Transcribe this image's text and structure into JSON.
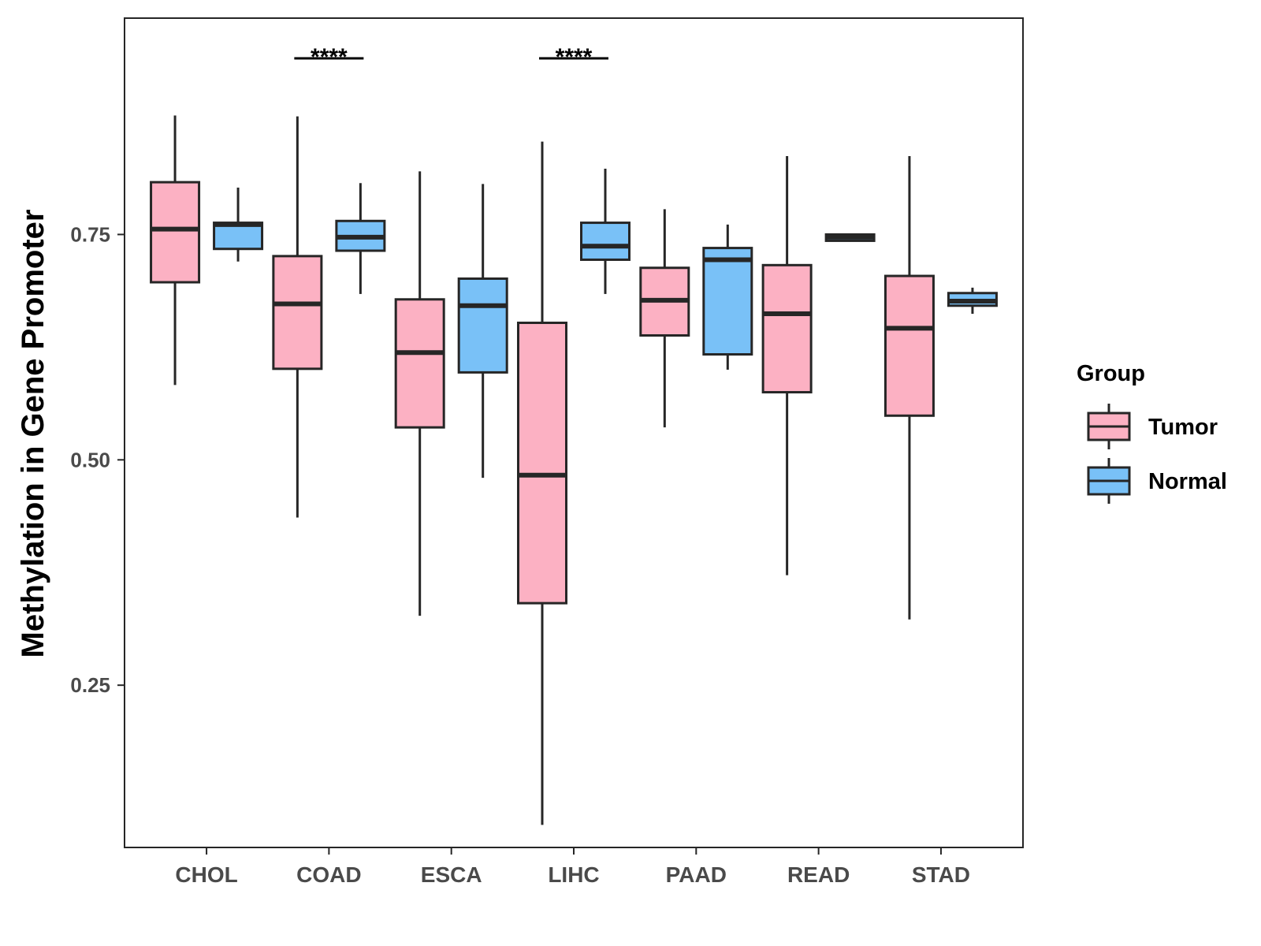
{
  "chart_data": {
    "type": "boxplot",
    "ylabel": "Methylation in Gene Promoter",
    "xlabel": "",
    "ylim": [
      0.07,
      0.99
    ],
    "yticks": [
      0.25,
      0.5,
      0.75
    ],
    "ytick_labels": [
      "0.25",
      "0.50",
      "0.75"
    ],
    "categories": [
      "CHOL",
      "COAD",
      "ESCA",
      "LIHC",
      "PAAD",
      "READ",
      "STAD"
    ],
    "legend": {
      "title": "Group",
      "position": "right",
      "entries": [
        "Tumor",
        "Normal"
      ]
    },
    "colors": {
      "Tumor": "#fcb1c3",
      "Normal": "#79c1f7",
      "outline": "#262626"
    },
    "series": [
      {
        "name": "Tumor",
        "boxes": [
          {
            "min": 0.583,
            "q1": 0.697,
            "median": 0.756,
            "q3": 0.808,
            "max": 0.882
          },
          {
            "min": 0.436,
            "q1": 0.601,
            "median": 0.673,
            "q3": 0.726,
            "max": 0.881
          },
          {
            "min": 0.327,
            "q1": 0.536,
            "median": 0.619,
            "q3": 0.678,
            "max": 0.82
          },
          {
            "min": 0.095,
            "q1": 0.341,
            "median": 0.483,
            "q3": 0.652,
            "max": 0.853
          },
          {
            "min": 0.536,
            "q1": 0.638,
            "median": 0.677,
            "q3": 0.713,
            "max": 0.778
          },
          {
            "min": 0.372,
            "q1": 0.575,
            "median": 0.662,
            "q3": 0.716,
            "max": 0.837
          },
          {
            "min": 0.323,
            "q1": 0.549,
            "median": 0.646,
            "q3": 0.704,
            "max": 0.837
          }
        ]
      },
      {
        "name": "Normal",
        "boxes": [
          {
            "min": 0.72,
            "q1": 0.734,
            "median": 0.761,
            "q3": 0.763,
            "max": 0.802
          },
          {
            "min": 0.684,
            "q1": 0.732,
            "median": 0.747,
            "q3": 0.765,
            "max": 0.807
          },
          {
            "min": 0.48,
            "q1": 0.597,
            "median": 0.671,
            "q3": 0.701,
            "max": 0.806
          },
          {
            "min": 0.684,
            "q1": 0.722,
            "median": 0.737,
            "q3": 0.763,
            "max": 0.823
          },
          {
            "min": 0.6,
            "q1": 0.617,
            "median": 0.722,
            "q3": 0.735,
            "max": 0.761
          },
          {
            "min": 0.742,
            "q1": 0.743,
            "median": 0.747,
            "q3": 0.75,
            "max": 0.751
          },
          {
            "min": 0.662,
            "q1": 0.671,
            "median": 0.676,
            "q3": 0.685,
            "max": 0.691
          }
        ]
      }
    ],
    "annotations": [
      {
        "category": "COAD",
        "label": "****"
      },
      {
        "category": "LIHC",
        "label": "****"
      }
    ]
  }
}
